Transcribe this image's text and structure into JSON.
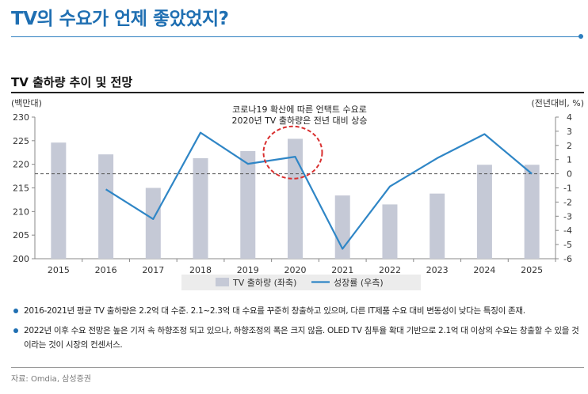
{
  "page": {
    "title": "TV의 수요가 언제 좋았었지?",
    "chart_title": "TV 출하량 추이 및 전망",
    "source": "자료: Omdia, 삼성증권"
  },
  "bullets": [
    "2016-2021년 평균 TV 출하량은 2.2억 대 수준. 2.1~2.3억 대 수요를 꾸준히 창출하고 있으며, 다른 IT제품 수요 대비 변동성이 낮다는 특징이 존재.",
    "2022년 이후 수요 전망은 높은 기저 속 하향조정 되고 있으나, 하향조정의 폭은 크지 않음. OLED TV 침투율 확대 기반으로 2.1억 대 이상의 수요는 창출할 수 있을 것이라는 것이 시장의 컨센서스."
  ],
  "colors": {
    "accent": "#1f6fb2",
    "bar": "#c5c9d6",
    "line": "#2f86c6",
    "highlight": "#d93030"
  },
  "chart_data": {
    "type": "bar+line",
    "categories": [
      "2015",
      "2016",
      "2017",
      "2018",
      "2019",
      "2020",
      "2021",
      "2022",
      "2023",
      "2024",
      "2025"
    ],
    "series": [
      {
        "name": "TV 출하량 (좌축)",
        "type": "bar",
        "axis": "left",
        "values": [
          224.6,
          222.1,
          215.0,
          221.3,
          222.8,
          225.4,
          213.4,
          211.5,
          213.8,
          219.9,
          219.9
        ]
      },
      {
        "name": "성장률 (우측)",
        "type": "line",
        "axis": "right",
        "values": [
          null,
          -1.1,
          -3.2,
          2.9,
          0.7,
          1.2,
          -5.3,
          -0.9,
          1.1,
          2.8,
          0.0
        ]
      }
    ],
    "y_left": {
      "label": "(백만대)",
      "min": 200,
      "max": 230,
      "ticks": [
        200,
        205,
        210,
        215,
        220,
        225,
        230
      ]
    },
    "y_right": {
      "label": "(전년대비, %)",
      "min": -6,
      "max": 4,
      "ticks": [
        -6,
        -5,
        -4,
        -3,
        -2,
        -1,
        0,
        1,
        2,
        3,
        4
      ]
    },
    "annotation": {
      "lines": [
        "코로나19 확산에 따른 언택트 수요로",
        "2020년 TV 출하량은 전년 대비 상승"
      ],
      "category": "2020"
    },
    "zero_line": "dashed",
    "grid": false,
    "legend_position": "bottom-center"
  }
}
